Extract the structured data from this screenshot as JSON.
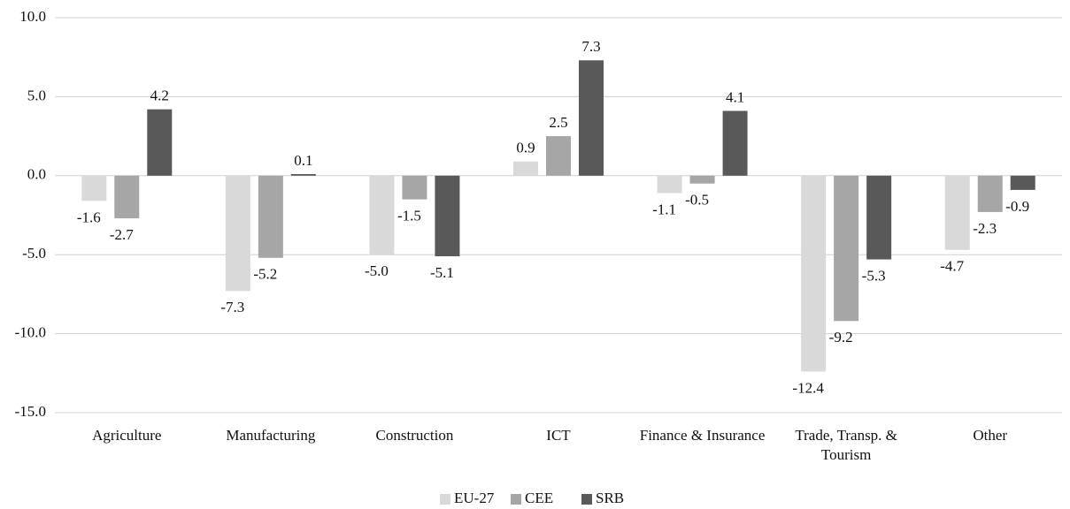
{
  "chart_data": {
    "type": "bar",
    "categories": [
      "Agriculture",
      "Manufacturing",
      "Construction",
      "ICT",
      "Finance & Insurance",
      "Trade, Transp. & Tourism",
      "Other"
    ],
    "series": [
      {
        "name": "EU-27",
        "color": "#d9d9d9",
        "values": [
          -1.6,
          -7.3,
          -5.0,
          0.9,
          -1.1,
          -12.4,
          -4.7
        ],
        "value_labels": [
          "-1.6",
          "-7.3",
          "-5.0",
          "0.9",
          "-1.1",
          "-12.4",
          "-4.7"
        ]
      },
      {
        "name": "CEE",
        "color": "#a6a6a6",
        "values": [
          -2.7,
          -5.2,
          -1.5,
          2.5,
          -0.5,
          -9.2,
          -2.3
        ],
        "value_labels": [
          "-2.7",
          "-5.2",
          "-1.5",
          "2.5",
          "-0.5",
          "-9.2",
          "-2.3"
        ]
      },
      {
        "name": "SRB",
        "color": "#595959",
        "values": [
          4.2,
          0.1,
          -5.1,
          7.3,
          4.1,
          -5.3,
          -0.9
        ],
        "value_labels": [
          "4.2",
          "0.1",
          "-5.1",
          "7.3",
          "4.1",
          "-5.3",
          "-0.9"
        ]
      }
    ],
    "ylim": [
      -15,
      10
    ],
    "yticks": [
      {
        "value": -15,
        "label": "-15.0"
      },
      {
        "value": -10,
        "label": "-10.0"
      },
      {
        "value": -5,
        "label": "-5.0"
      },
      {
        "value": 0,
        "label": "0.0"
      },
      {
        "value": 5,
        "label": "5.0"
      },
      {
        "value": 10,
        "label": "10.0"
      }
    ],
    "grid": true,
    "legend": "bottom"
  }
}
